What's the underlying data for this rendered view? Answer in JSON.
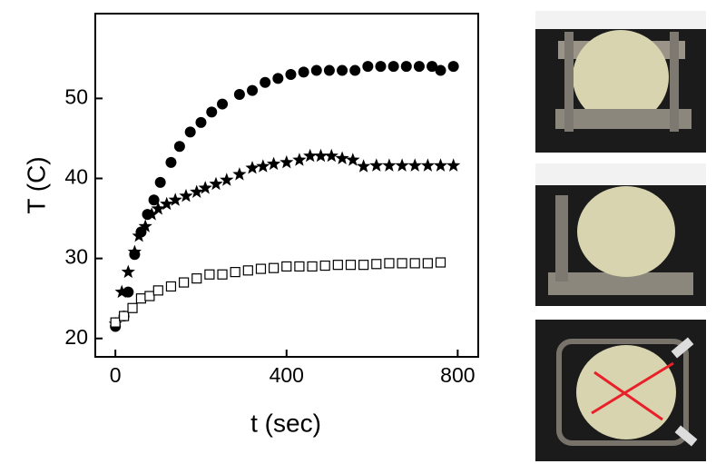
{
  "chart_data": {
    "type": "scatter",
    "xlabel": "t (sec)",
    "ylabel": "T (C)",
    "xlim": [
      -47,
      848
    ],
    "ylim": [
      17.7,
      60.6
    ],
    "xticks": [
      0,
      400,
      800
    ],
    "yticks": [
      20,
      30,
      40,
      50
    ],
    "series": [
      {
        "marker": "circle",
        "color": "#000000",
        "x": [
          0,
          20,
          30,
          45,
          60,
          75,
          90,
          105,
          130,
          150,
          175,
          200,
          225,
          250,
          290,
          320,
          350,
          380,
          410,
          440,
          470,
          500,
          530,
          560,
          590,
          620,
          650,
          680,
          710,
          740,
          760,
          790
        ],
        "values": [
          21.5,
          22.8,
          25.8,
          30.5,
          33.3,
          35.5,
          37.3,
          39.5,
          42,
          44,
          45.8,
          47,
          48.3,
          49.3,
          50.5,
          51,
          52,
          52.5,
          53,
          53.3,
          53.5,
          53.5,
          53.5,
          53.5,
          54,
          54,
          54,
          54,
          54,
          54,
          53.5,
          54
        ]
      },
      {
        "marker": "star",
        "color": "#000000",
        "x": [
          0,
          15,
          30,
          45,
          55,
          70,
          85,
          100,
          120,
          140,
          165,
          190,
          210,
          235,
          260,
          290,
          320,
          345,
          370,
          400,
          430,
          455,
          480,
          505,
          530,
          555,
          580,
          610,
          640,
          670,
          700,
          730,
          760,
          790
        ],
        "values": [
          21.8,
          25.8,
          28.3,
          30.8,
          32.8,
          34,
          35.5,
          36.2,
          36.8,
          37.3,
          37.8,
          38.3,
          38.8,
          39.3,
          39.8,
          40.5,
          41.3,
          41.5,
          41.8,
          42,
          42.3,
          42.8,
          42.8,
          42.8,
          42.5,
          42.3,
          41.5,
          41.6,
          41.6,
          41.6,
          41.6,
          41.6,
          41.6,
          41.6
        ]
      },
      {
        "marker": "square-open",
        "color": "#000000",
        "x": [
          0,
          20,
          40,
          60,
          80,
          100,
          130,
          160,
          190,
          220,
          250,
          280,
          310,
          340,
          370,
          400,
          430,
          460,
          490,
          520,
          550,
          580,
          610,
          640,
          670,
          700,
          730,
          760
        ],
        "values": [
          22,
          22.8,
          23.8,
          25,
          25.3,
          26,
          26.5,
          27,
          27.5,
          28,
          28,
          28.3,
          28.5,
          28.7,
          28.8,
          29,
          29,
          29,
          29.1,
          29.2,
          29.2,
          29.2,
          29.3,
          29.4,
          29.4,
          29.4,
          29.4,
          29.5
        ]
      }
    ]
  }
}
